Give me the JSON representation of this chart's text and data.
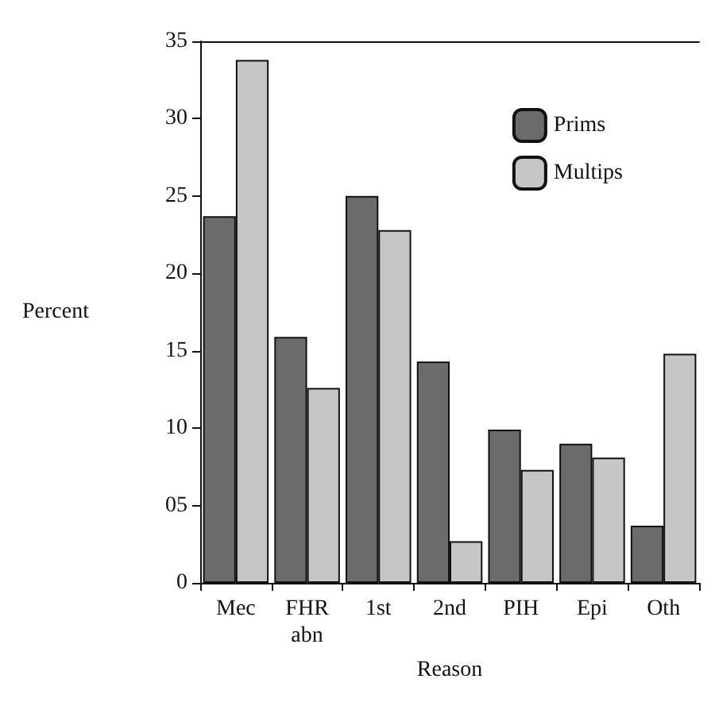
{
  "chart_data": {
    "type": "bar",
    "xlabel": "Reason",
    "ylabel": "Percent",
    "categories": [
      "Mec",
      "FHR\nabn",
      "1st",
      "2nd",
      "PIH",
      "Epi",
      "Oth"
    ],
    "series": [
      {
        "name": "Prims",
        "color": "#6b6b6b",
        "values": [
          23.7,
          15.9,
          25.0,
          14.3,
          9.9,
          9.0,
          3.7
        ]
      },
      {
        "name": "Multips",
        "color": "#c6c6c6",
        "values": [
          33.8,
          12.6,
          22.8,
          2.7,
          7.3,
          8.1,
          14.8
        ]
      }
    ],
    "ylim": [
      0,
      35
    ],
    "yticks": [
      0,
      {
        "value": 5,
        "label": "05"
      },
      10,
      15,
      20,
      25,
      30,
      35
    ],
    "grid": false,
    "legend": "top right"
  }
}
